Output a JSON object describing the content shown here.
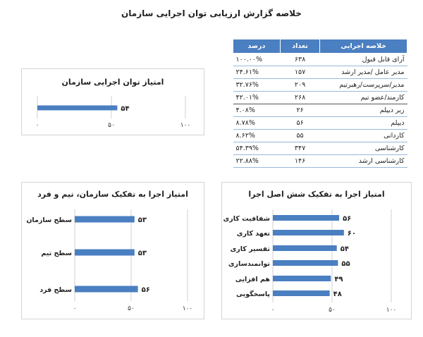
{
  "page_title": "خلاصه گزارش ارزیابی توان اجرایی سازمان",
  "table": {
    "headers": {
      "label": "خلاصه اجرایی",
      "count": "تعداد",
      "percent": "درصد"
    },
    "rows": [
      {
        "label": "آرای قابل قبول",
        "count": "۶۳۸",
        "percent": "۱۰۰.۰۰%"
      },
      {
        "label": "مدیر عامل /مدیر ارشد",
        "count": "۱۵۷",
        "percent": "۲۴.۶۱%"
      },
      {
        "label": "مدیر/سرپرست/رهبرتیم",
        "count": "۲۰۹",
        "percent": "۳۲.۷۶%"
      },
      {
        "label": "کارمند/عضو تیم",
        "count": "۲۶۸",
        "percent": "۴۲.۰۱%"
      },
      {
        "label": "زیر دیپلم",
        "count": "۲۶",
        "percent": "۴.۰۸%"
      },
      {
        "label": "دیپلم",
        "count": "۵۶",
        "percent": "۸.۷۸%"
      },
      {
        "label": "کاردانی",
        "count": "۵۵",
        "percent": "۸.۶۲%"
      },
      {
        "label": "کارشناسی",
        "count": "۳۴۷",
        "percent": "۵۴.۳۹%"
      },
      {
        "label": "کارشناسی ارشد",
        "count": "۱۴۶",
        "percent": "۲۲.۸۸%"
      }
    ]
  },
  "colors": {
    "bar": "#4a7fc1",
    "grid": "#d0d0d0",
    "header": "#4a7fc1"
  },
  "chart_data": [
    {
      "type": "bar",
      "title": "امتیاز توان اجرایی سازمان",
      "categories": [
        ""
      ],
      "values": [
        54
      ],
      "value_labels": [
        "۵۴"
      ],
      "tick_labels": [
        "۰",
        "۵۰",
        "۱۰۰"
      ],
      "xlim": [
        0,
        100
      ]
    },
    {
      "type": "bar",
      "title": "امتیاز اجرا به تفکیک سازمان، تیم و فرد",
      "categories": [
        "سطح سازمان",
        "سطح تیم",
        "سطح فرد"
      ],
      "values": [
        53,
        53,
        56
      ],
      "value_labels": [
        "۵۳",
        "۵۳",
        "۵۶"
      ],
      "tick_labels": [
        "۰",
        "۵۰",
        "۱۰۰"
      ],
      "xlim": [
        0,
        100
      ]
    },
    {
      "type": "bar",
      "title": "امتیاز اجرا به تفکیک شش اصل اجرا",
      "categories": [
        "شفافیت کاری",
        "تعهد کاری",
        "تفسیر کاری",
        "توانمندسازی",
        "هم افزایی",
        "پاسخگویی"
      ],
      "values": [
        56,
        60,
        54,
        55,
        49,
        48
      ],
      "value_labels": [
        "۵۶",
        "۶۰",
        "۵۴",
        "۵۵",
        "۴۹",
        "۴۸"
      ],
      "tick_labels": [
        "۰",
        "۵۰",
        "۱۰۰"
      ],
      "xlim": [
        0,
        100
      ]
    }
  ]
}
